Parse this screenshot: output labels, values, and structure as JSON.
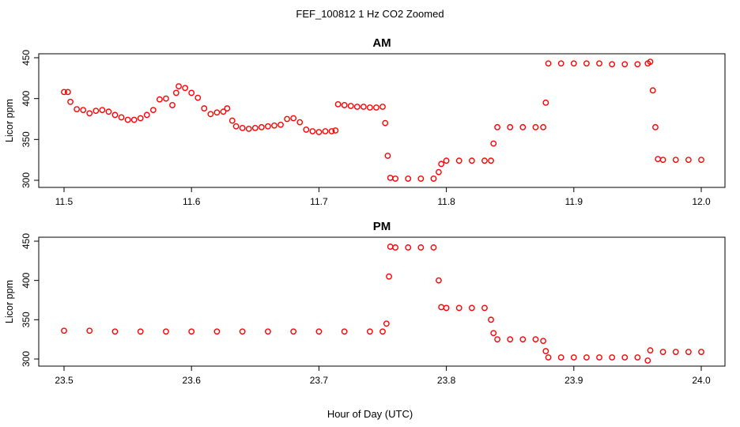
{
  "figure": {
    "title": "FEF_100812  1 Hz CO2 Zoomed",
    "xlabel": "Hour of Day (UTC)"
  },
  "colors": {
    "points": "#ff0000"
  },
  "chart_data": [
    {
      "type": "scatter",
      "title": "AM",
      "xlabel": "",
      "ylabel": "Licor ppm",
      "xlim": [
        11.5,
        12.0
      ],
      "ylim": [
        300,
        450
      ],
      "xticks": [
        "11.5",
        "11.6",
        "11.7",
        "11.8",
        "11.9",
        "12.0"
      ],
      "yticks": [
        "300",
        "350",
        "400",
        "450"
      ],
      "marker": "open-circle",
      "color": "#ff0000",
      "series": [
        {
          "x": [
            11.5,
            11.503,
            11.505,
            11.51,
            11.515,
            11.52,
            11.525,
            11.53,
            11.535,
            11.54,
            11.545,
            11.55,
            11.555,
            11.56,
            11.565,
            11.57,
            11.575,
            11.58,
            11.585,
            11.588,
            11.59,
            11.595,
            11.6,
            11.605,
            11.61,
            11.615,
            11.62,
            11.625,
            11.628,
            11.632,
            11.635,
            11.64,
            11.645,
            11.65,
            11.655,
            11.66,
            11.665,
            11.67,
            11.675,
            11.68,
            11.685,
            11.69,
            11.695,
            11.7,
            11.705,
            11.71,
            11.713,
            11.715,
            11.72,
            11.725,
            11.73,
            11.735,
            11.74,
            11.745,
            11.75,
            11.752,
            11.754,
            11.756,
            11.76,
            11.77,
            11.78,
            11.79,
            11.794,
            11.796,
            11.8,
            11.81,
            11.82,
            11.83,
            11.835,
            11.837,
            11.84,
            11.85,
            11.86,
            11.87,
            11.876,
            11.878,
            11.88,
            11.89,
            11.9,
            11.91,
            11.92,
            11.93,
            11.94,
            11.95,
            11.958,
            11.96,
            11.962,
            11.964,
            11.966,
            11.97,
            11.98,
            11.99,
            12.0
          ],
          "y": [
            408,
            408,
            396,
            387,
            386,
            382,
            385,
            386,
            384,
            380,
            377,
            374,
            374,
            376,
            380,
            386,
            399,
            400,
            392,
            407,
            415,
            413,
            407,
            401,
            388,
            381,
            383,
            384,
            388,
            373,
            366,
            364,
            363,
            364,
            365,
            366,
            367,
            368,
            375,
            376,
            371,
            362,
            360,
            359,
            360,
            360,
            361,
            393,
            392,
            391,
            390,
            390,
            389,
            389,
            390,
            370,
            330,
            303,
            302,
            302,
            302,
            302,
            310,
            320,
            324,
            324,
            324,
            324,
            324,
            345,
            365,
            365,
            365,
            365,
            365,
            395,
            443,
            443,
            443,
            443,
            443,
            442,
            442,
            442,
            443,
            445,
            410,
            365,
            326,
            325,
            325,
            325,
            325
          ]
        }
      ]
    },
    {
      "type": "scatter",
      "title": "PM",
      "xlabel": "Hour of Day (UTC)",
      "ylabel": "Licor ppm",
      "xlim": [
        23.5,
        24.0
      ],
      "ylim": [
        300,
        450
      ],
      "xticks": [
        "23.5",
        "23.6",
        "23.7",
        "23.8",
        "23.9",
        "24.0"
      ],
      "yticks": [
        "300",
        "350",
        "400",
        "450"
      ],
      "marker": "open-circle",
      "color": "#ff0000",
      "series": [
        {
          "x": [
            23.5,
            23.52,
            23.54,
            23.56,
            23.58,
            23.6,
            23.62,
            23.64,
            23.66,
            23.68,
            23.7,
            23.72,
            23.74,
            23.75,
            23.753,
            23.755,
            23.756,
            23.76,
            23.77,
            23.78,
            23.79,
            23.794,
            23.796,
            23.8,
            23.81,
            23.82,
            23.83,
            23.835,
            23.837,
            23.84,
            23.85,
            23.86,
            23.87,
            23.876,
            23.878,
            23.88,
            23.89,
            23.9,
            23.91,
            23.92,
            23.93,
            23.94,
            23.95,
            23.958,
            23.96,
            23.97,
            23.98,
            23.99,
            24.0
          ],
          "y": [
            336,
            336,
            335,
            335,
            335,
            335,
            335,
            335,
            335,
            335,
            335,
            335,
            335,
            335,
            345,
            405,
            443,
            442,
            442,
            442,
            442,
            400,
            366,
            365,
            365,
            365,
            365,
            350,
            333,
            325,
            325,
            325,
            325,
            323,
            310,
            302,
            302,
            302,
            302,
            302,
            302,
            302,
            302,
            298,
            311,
            309,
            309,
            309,
            309
          ]
        }
      ]
    }
  ]
}
